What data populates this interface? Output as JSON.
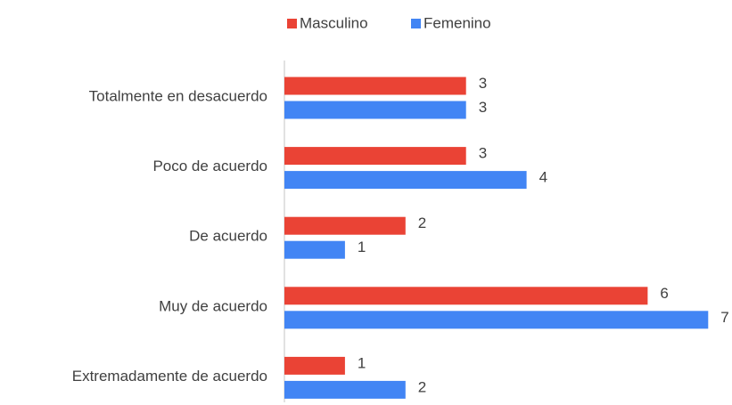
{
  "chart_data": {
    "type": "hbar",
    "categories": [
      "Totalmente en desacuerdo",
      "Poco de acuerdo",
      "De acuerdo",
      "Muy de acuerdo",
      "Extremadamente de acuerdo"
    ],
    "series": [
      {
        "name": "Masculino",
        "color": "#ea4335",
        "values": [
          3,
          3,
          2,
          6,
          1
        ]
      },
      {
        "name": "Femenino",
        "color": "#4285f4",
        "values": [
          3,
          4,
          1,
          7,
          2
        ]
      }
    ],
    "legend": "top"
  }
}
